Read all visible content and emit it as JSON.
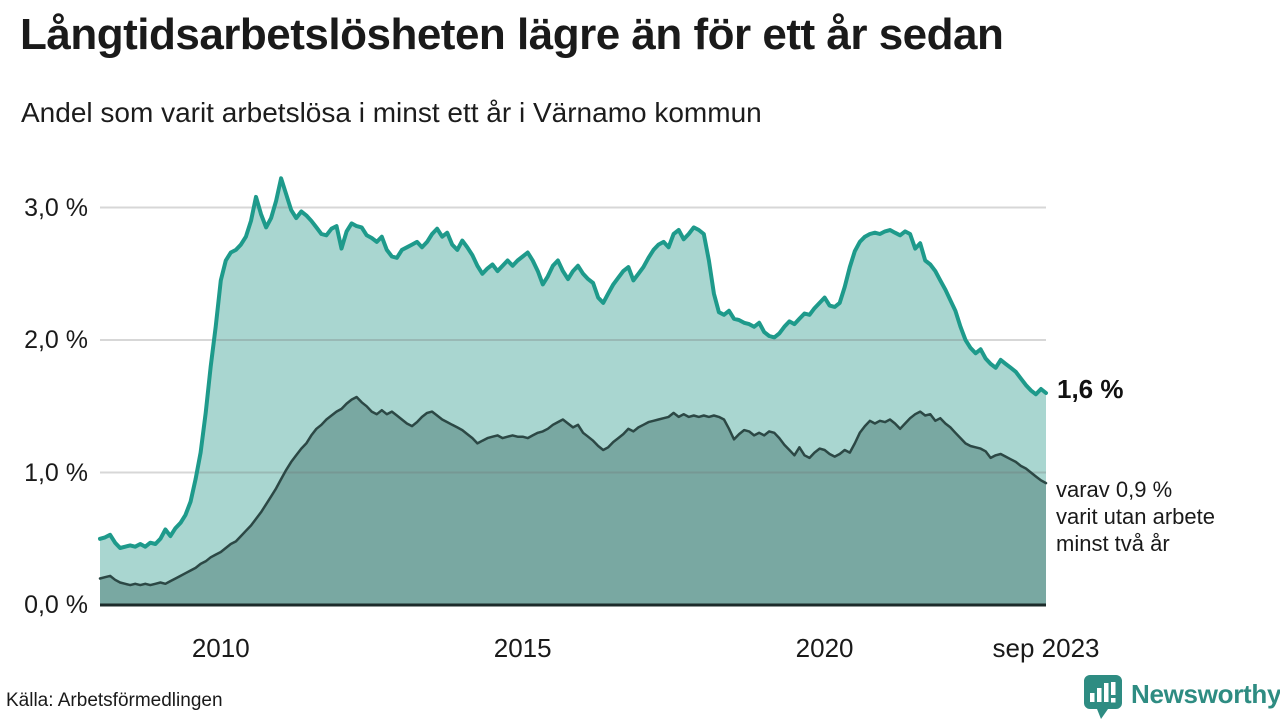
{
  "header": {
    "title": "Långtidsarbetslösheten lägre än för ett år sedan",
    "subtitle": "Andel som varit arbetslösa i minst ett år i Värnamo kommun"
  },
  "annotations": {
    "latest_total": "1,6 %",
    "secondary_lines": [
      "varav 0,9 %",
      "varit utan arbete",
      "minst två år"
    ]
  },
  "footer": {
    "source": "Källa: Arbetsförmedlingen",
    "brand": "Newsworthy"
  },
  "colors": {
    "accent_teal_line": "#1e9a8b",
    "light_area_fill": "#a9d6d0",
    "dark_area_line": "#2c4845",
    "dark_area_fill": "#79a8a2",
    "baseline": "#1c2b2a",
    "gridline": "rgba(110,110,110,0.28)",
    "text": "#1a1a1a",
    "brand_teal": "#2e8c82"
  },
  "chart_data": {
    "type": "area",
    "title": "Långtidsarbetslösheten lägre än för ett år sedan",
    "subtitle": "Andel som varit arbetslösa i minst ett år i Värnamo kommun",
    "unit": "%",
    "frequency": "monthly",
    "x_start_year": 2008,
    "x_start_month": 1,
    "x_end_label": "sep 2023",
    "ylim": [
      0,
      3.3
    ],
    "grid": "horizontal",
    "legend_position": "none",
    "y_ticks": [
      {
        "label": "0,0 %",
        "value": 0
      },
      {
        "label": "1,0 %",
        "value": 1
      },
      {
        "label": "2,0 %",
        "value": 2
      },
      {
        "label": "3,0 %",
        "value": 3
      }
    ],
    "x_ticks": [
      {
        "label": "2010",
        "t": 2010.0
      },
      {
        "label": "2015",
        "t": 2015.0
      },
      {
        "label": "2020",
        "t": 2020.0
      },
      {
        "label": "sep 2023",
        "t": 2023.667
      }
    ],
    "series": [
      {
        "name": "Arbetslösa minst ett år",
        "latest_value": 1.6,
        "values": [
          0.5,
          0.51,
          0.53,
          0.47,
          0.43,
          0.44,
          0.45,
          0.44,
          0.46,
          0.44,
          0.47,
          0.46,
          0.5,
          0.57,
          0.52,
          0.58,
          0.62,
          0.68,
          0.78,
          0.95,
          1.15,
          1.45,
          1.8,
          2.1,
          2.45,
          2.6,
          2.66,
          2.68,
          2.72,
          2.78,
          2.9,
          3.08,
          2.95,
          2.85,
          2.92,
          3.05,
          3.22,
          3.1,
          2.98,
          2.92,
          2.97,
          2.94,
          2.9,
          2.85,
          2.8,
          2.79,
          2.84,
          2.86,
          2.69,
          2.82,
          2.88,
          2.86,
          2.85,
          2.79,
          2.77,
          2.74,
          2.78,
          2.68,
          2.63,
          2.62,
          2.68,
          2.7,
          2.72,
          2.74,
          2.7,
          2.74,
          2.8,
          2.84,
          2.78,
          2.81,
          2.72,
          2.68,
          2.75,
          2.7,
          2.64,
          2.56,
          2.5,
          2.54,
          2.57,
          2.52,
          2.56,
          2.6,
          2.56,
          2.6,
          2.63,
          2.66,
          2.6,
          2.52,
          2.42,
          2.48,
          2.56,
          2.6,
          2.52,
          2.46,
          2.52,
          2.56,
          2.5,
          2.46,
          2.43,
          2.32,
          2.28,
          2.35,
          2.42,
          2.47,
          2.52,
          2.55,
          2.45,
          2.5,
          2.55,
          2.62,
          2.68,
          2.72,
          2.74,
          2.7,
          2.8,
          2.83,
          2.76,
          2.8,
          2.85,
          2.83,
          2.8,
          2.6,
          2.35,
          2.21,
          2.19,
          2.22,
          2.16,
          2.15,
          2.13,
          2.12,
          2.1,
          2.13,
          2.06,
          2.03,
          2.02,
          2.05,
          2.1,
          2.14,
          2.12,
          2.16,
          2.2,
          2.19,
          2.24,
          2.28,
          2.32,
          2.26,
          2.25,
          2.28,
          2.4,
          2.55,
          2.67,
          2.74,
          2.78,
          2.8,
          2.81,
          2.8,
          2.82,
          2.83,
          2.81,
          2.79,
          2.82,
          2.8,
          2.69,
          2.73,
          2.6,
          2.57,
          2.52,
          2.45,
          2.38,
          2.3,
          2.22,
          2.1,
          2.0,
          1.94,
          1.9,
          1.93,
          1.86,
          1.82,
          1.79,
          1.85,
          1.82,
          1.79,
          1.76,
          1.71,
          1.66,
          1.62,
          1.59,
          1.63,
          1.6
        ]
      },
      {
        "name": "Utan arbete minst två år",
        "latest_value": 0.9,
        "values": [
          0.2,
          0.21,
          0.22,
          0.19,
          0.17,
          0.16,
          0.15,
          0.16,
          0.15,
          0.16,
          0.15,
          0.16,
          0.17,
          0.16,
          0.18,
          0.2,
          0.22,
          0.24,
          0.26,
          0.28,
          0.31,
          0.33,
          0.36,
          0.38,
          0.4,
          0.43,
          0.46,
          0.48,
          0.52,
          0.56,
          0.6,
          0.65,
          0.7,
          0.76,
          0.82,
          0.88,
          0.95,
          1.02,
          1.08,
          1.13,
          1.18,
          1.22,
          1.28,
          1.33,
          1.36,
          1.4,
          1.43,
          1.46,
          1.48,
          1.52,
          1.55,
          1.57,
          1.53,
          1.5,
          1.46,
          1.44,
          1.47,
          1.44,
          1.46,
          1.43,
          1.4,
          1.37,
          1.35,
          1.38,
          1.42,
          1.45,
          1.46,
          1.43,
          1.4,
          1.38,
          1.36,
          1.34,
          1.32,
          1.29,
          1.26,
          1.22,
          1.24,
          1.26,
          1.27,
          1.28,
          1.26,
          1.27,
          1.28,
          1.27,
          1.27,
          1.26,
          1.28,
          1.3,
          1.31,
          1.33,
          1.36,
          1.38,
          1.4,
          1.37,
          1.34,
          1.36,
          1.3,
          1.27,
          1.24,
          1.2,
          1.17,
          1.19,
          1.23,
          1.26,
          1.29,
          1.33,
          1.31,
          1.34,
          1.36,
          1.38,
          1.39,
          1.4,
          1.41,
          1.42,
          1.45,
          1.42,
          1.44,
          1.42,
          1.43,
          1.42,
          1.43,
          1.42,
          1.43,
          1.42,
          1.4,
          1.33,
          1.25,
          1.29,
          1.32,
          1.31,
          1.28,
          1.3,
          1.28,
          1.31,
          1.3,
          1.26,
          1.21,
          1.17,
          1.13,
          1.19,
          1.13,
          1.11,
          1.15,
          1.18,
          1.17,
          1.14,
          1.12,
          1.14,
          1.17,
          1.15,
          1.22,
          1.3,
          1.35,
          1.39,
          1.37,
          1.39,
          1.38,
          1.4,
          1.37,
          1.33,
          1.37,
          1.41,
          1.44,
          1.46,
          1.43,
          1.44,
          1.39,
          1.41,
          1.37,
          1.34,
          1.3,
          1.26,
          1.22,
          1.2,
          1.19,
          1.18,
          1.16,
          1.11,
          1.13,
          1.14,
          1.12,
          1.1,
          1.08,
          1.05,
          1.03,
          1.0,
          0.97,
          0.94,
          0.92
        ]
      }
    ]
  }
}
